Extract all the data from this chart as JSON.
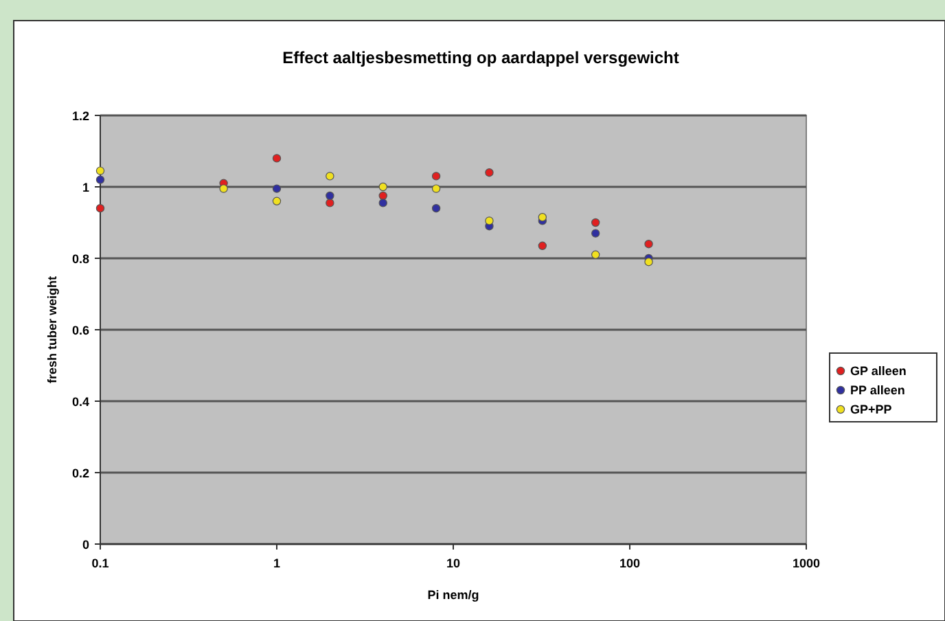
{
  "chart_data": {
    "type": "scatter",
    "title": "Effect aaltjesbesmetting op aardappel versgewicht",
    "xlabel": "Pi nem/g",
    "ylabel": "fresh tuber weight",
    "log": "x",
    "x": [
      0.1,
      0.5,
      1,
      2,
      4,
      8,
      16,
      32,
      64,
      128
    ],
    "series": [
      {
        "name": "GP alleen",
        "color": "#e02020",
        "values": [
          0.94,
          1.01,
          1.08,
          0.955,
          0.975,
          1.03,
          1.04,
          0.835,
          0.9,
          0.84
        ]
      },
      {
        "name": "PP alleen",
        "color": "#3030a0",
        "values": [
          1.02,
          null,
          0.995,
          0.975,
          0.955,
          0.94,
          0.89,
          0.905,
          0.87,
          0.8
        ]
      },
      {
        "name": "GP+PP",
        "color": "#f0e020",
        "values": [
          1.045,
          0.995,
          0.96,
          1.03,
          1.0,
          0.995,
          0.905,
          0.915,
          0.81,
          0.79
        ]
      }
    ],
    "xlim": [
      0.1,
      1000
    ],
    "xticks": [
      0.1,
      1,
      10,
      100,
      1000
    ],
    "ylim": [
      0,
      1.2
    ],
    "yticks": [
      0,
      0.2,
      0.4,
      0.6,
      0.8,
      1,
      1.2
    ],
    "grid": "y",
    "legend": "right",
    "marker": "circle"
  }
}
